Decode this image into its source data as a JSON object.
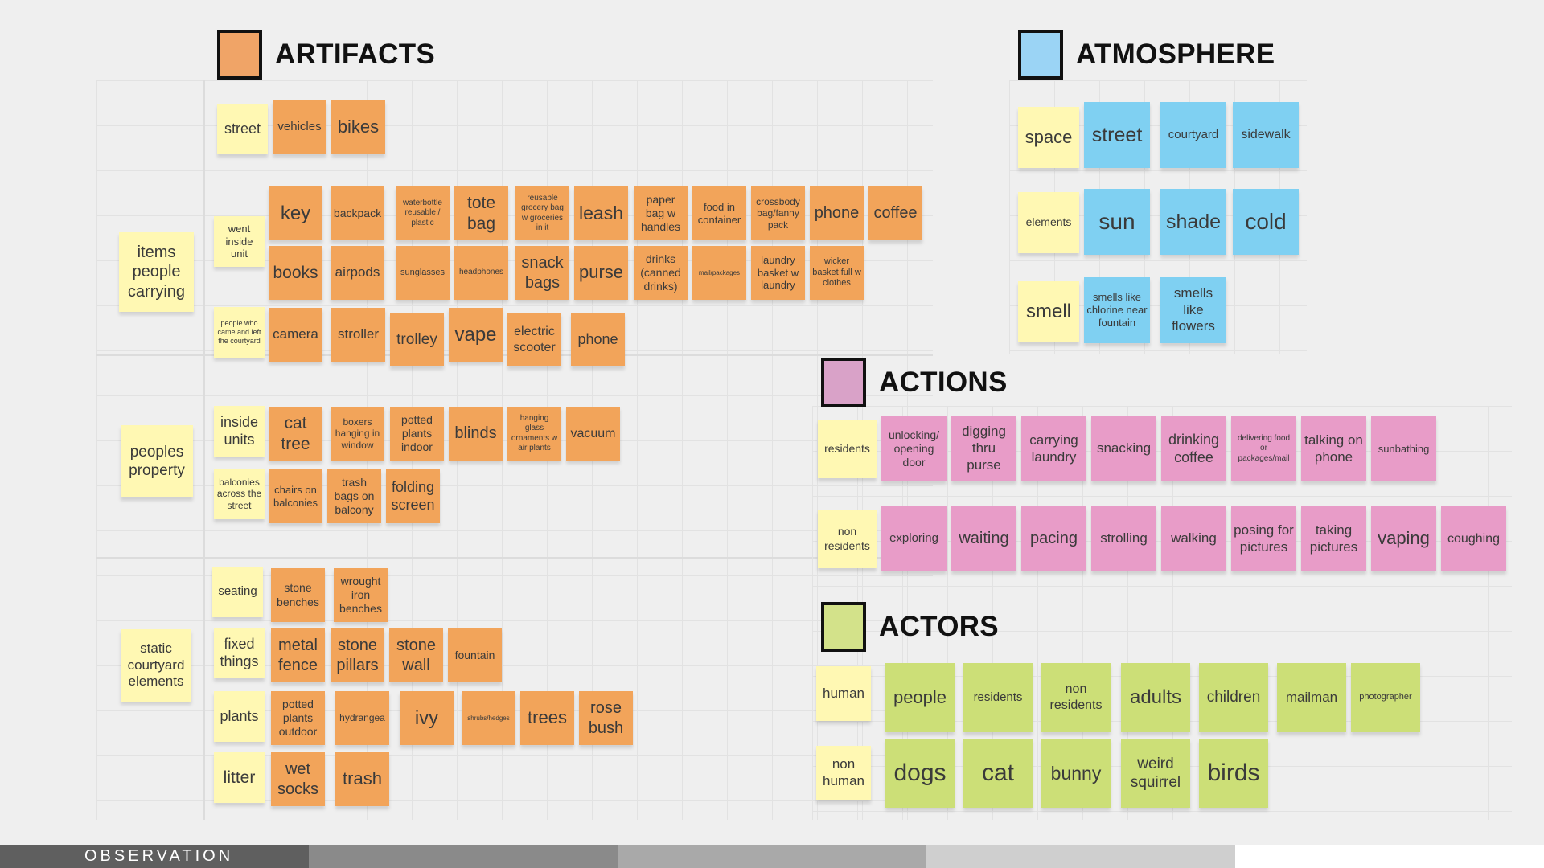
{
  "footer": {
    "label": "OBSERVATION"
  },
  "colors": {
    "artifacts": "#f2a45a",
    "atmosphere": "#7fd0f2",
    "actions": "#e89cc8",
    "actors": "#ccdf77",
    "category": "#fff8b3"
  },
  "headings": {
    "artifacts": "ARTIFACTS",
    "atmosphere": "ATMOSPHERE",
    "actions": "ACTIONS",
    "actors": "ACTORS"
  },
  "artifacts": {
    "items_people_carrying": "items people carrying",
    "peoples_property": "peoples property",
    "static_courtyard_elements": "static courtyard elements",
    "street": "street",
    "went_inside_unit": "went inside unit",
    "people_came_left": "people who came and left the courtyard",
    "inside_units": "inside units",
    "balconies": "balconies across the street",
    "seating": "seating",
    "fixed_things": "fixed things",
    "plants": "plants",
    "litter": "litter",
    "row_street": [
      "vehicles",
      "bikes"
    ],
    "row_went_1": [
      "key",
      "backpack",
      "waterbottle reusable / plastic",
      "tote bag",
      "reusable grocery bag w groceries in it",
      "leash",
      "paper bag w handles",
      "food in container",
      "crossbody bag/fanny pack",
      "phone",
      "coffee"
    ],
    "row_went_2": [
      "books",
      "airpods",
      "sunglasses",
      "headphones",
      "snack bags",
      "purse",
      "drinks (canned drinks)",
      "mail/packages",
      "laundry basket w laundry",
      "wicker basket full w clothes"
    ],
    "row_came": [
      "camera",
      "stroller",
      "trolley",
      "vape",
      "electric scooter",
      "phone"
    ],
    "row_inside": [
      "cat tree",
      "boxers hanging in window",
      "potted plants indoor",
      "blinds",
      "hanging glass ornaments w air plants",
      "vacuum"
    ],
    "row_balconies": [
      "chairs on balconies",
      "trash bags on balcony",
      "folding screen"
    ],
    "row_seating": [
      "stone benches",
      "wrought iron benches"
    ],
    "row_fixed": [
      "metal fence",
      "stone pillars",
      "stone wall",
      "fountain"
    ],
    "row_plants": [
      "potted plants outdoor",
      "hydrangea",
      "ivy",
      "shrubs/hedges",
      "trees",
      "rose bush"
    ],
    "row_litter": [
      "wet socks",
      "trash"
    ]
  },
  "atmosphere": {
    "space": "space",
    "elements": "elements",
    "smell": "smell",
    "row_space": [
      "street",
      "courtyard",
      "sidewalk"
    ],
    "row_elements": [
      "sun",
      "shade",
      "cold"
    ],
    "row_smell": [
      "smells like chlorine near fountain",
      "smells like flowers"
    ]
  },
  "actions": {
    "residents": "residents",
    "non_residents": "non residents",
    "row_residents": [
      "unlocking/ opening door",
      "digging thru purse",
      "carrying laundry",
      "snacking",
      "drinking coffee",
      "delivering food or packages/mail",
      "talking on phone",
      "sunbathing"
    ],
    "row_non_residents": [
      "exploring",
      "waiting",
      "pacing",
      "strolling",
      "walking",
      "posing for pictures",
      "taking pictures",
      "vaping",
      "coughing"
    ]
  },
  "actors": {
    "human": "human",
    "non_human": "non human",
    "row_human": [
      "people",
      "residents",
      "non residents",
      "adults",
      "children",
      "mailman",
      "photographer"
    ],
    "row_non_human": [
      "dogs",
      "cat",
      "bunny",
      "weird squirrel",
      "birds"
    ]
  }
}
